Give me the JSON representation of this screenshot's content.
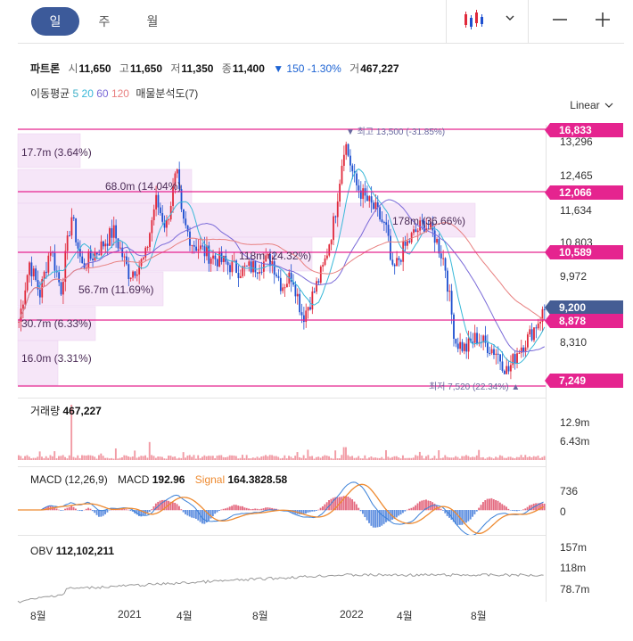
{
  "periods": {
    "day": "일",
    "week": "주",
    "month": "월"
  },
  "toolbar": {
    "chart_type_icon": "candle-chart-icon",
    "dropdown_icon": "chevron-down-icon",
    "zoom_out_icon": "minus-icon",
    "zoom_in_icon": "plus-icon"
  },
  "info": {
    "name": "파트론",
    "open_k": "시",
    "open": "11,650",
    "high_k": "고",
    "high": "11,650",
    "low_k": "저",
    "low": "11,350",
    "close_k": "종",
    "close": "11,400",
    "change": "▼ 150",
    "change_pct": "-1.30%",
    "volume_k": "거",
    "volume": "467,227"
  },
  "ma": {
    "label": "이동평균",
    "p5": "5",
    "p20": "20",
    "p60": "60",
    "p120": "120",
    "c5": "#3fb0c8",
    "c20": "#38b8d8",
    "c60": "#7a6ad8",
    "c120": "#e88080",
    "profile": "매물분석도(7)"
  },
  "scale": "Linear",
  "colors": {
    "up": "#e0283a",
    "down": "#1d4fd0",
    "level": "#e5248f",
    "last": "#455d94",
    "volume": "#f19aa4",
    "macd": "#3a80d8",
    "signal": "#ee8a30",
    "obv": "#999999"
  },
  "levels": {
    "l1": "16,833",
    "l2": "12,066",
    "l3": "10,589",
    "l4": "8,878",
    "l5": "7,249",
    "last": "9,200"
  },
  "axis_price": [
    "13,296",
    "12,465",
    "11,634",
    "10,803",
    "9,972",
    "8,310"
  ],
  "volume_profile": [
    "17.7m (3.64%)",
    "68.0m (14.04%)",
    "178m (36.66%)",
    "118m (24.32%)",
    "56.7m (11.69%)",
    "30.7m (6.33%)",
    "16.0m (3.31%)"
  ],
  "high_label": "▼ 최고 13,500 (-31.85%)",
  "low_label": "최저 7,520 (22.34%) ▲",
  "volume_panel": {
    "label": "거래량",
    "value": "467,227",
    "ticks": [
      "12.9m",
      "6.43m"
    ]
  },
  "macd_panel": {
    "label": "MACD (12,26,9)",
    "macd_k": "MACD",
    "macd": "192.96",
    "signal_k": "Signal",
    "signal": "164.3828.58",
    "ticks": [
      "736",
      "0"
    ]
  },
  "obv_panel": {
    "label": "OBV",
    "value": "112,102,211",
    "ticks": [
      "157m",
      "118m",
      "78.7m"
    ]
  },
  "x_months": [
    "8월",
    "2021",
    "4월",
    "8월",
    "2022",
    "4월",
    "8월"
  ],
  "chart_data": {
    "type": "candlestick",
    "y_range": [
      7100,
      13900
    ],
    "price_path": [
      [
        0,
        8900
      ],
      [
        0.02,
        10400
      ],
      [
        0.04,
        9600
      ],
      [
        0.06,
        10800
      ],
      [
        0.08,
        9700
      ],
      [
        0.1,
        11600
      ],
      [
        0.12,
        10300
      ],
      [
        0.15,
        10700
      ],
      [
        0.18,
        11200
      ],
      [
        0.21,
        10100
      ],
      [
        0.24,
        10500
      ],
      [
        0.26,
        12000
      ],
      [
        0.28,
        11300
      ],
      [
        0.3,
        12700
      ],
      [
        0.31,
        11500
      ],
      [
        0.33,
        10900
      ],
      [
        0.36,
        10600
      ],
      [
        0.39,
        10400
      ],
      [
        0.42,
        10200
      ],
      [
        0.45,
        10300
      ],
      [
        0.48,
        10500
      ],
      [
        0.5,
        9800
      ],
      [
        0.52,
        10100
      ],
      [
        0.54,
        9000
      ],
      [
        0.56,
        9600
      ],
      [
        0.58,
        10300
      ],
      [
        0.6,
        11500
      ],
      [
        0.62,
        13500
      ],
      [
        0.64,
        12400
      ],
      [
        0.66,
        12000
      ],
      [
        0.68,
        11700
      ],
      [
        0.7,
        11200
      ],
      [
        0.71,
        10100
      ],
      [
        0.73,
        10700
      ],
      [
        0.75,
        11100
      ],
      [
        0.77,
        11400
      ],
      [
        0.79,
        11100
      ],
      [
        0.81,
        10400
      ],
      [
        0.83,
        8400
      ],
      [
        0.85,
        8200
      ],
      [
        0.87,
        8500
      ],
      [
        0.89,
        8300
      ],
      [
        0.91,
        8100
      ],
      [
        0.93,
        7600
      ],
      [
        0.95,
        8200
      ],
      [
        0.97,
        8500
      ],
      [
        1.0,
        9200
      ]
    ],
    "volume_spikes": [
      [
        0.1,
        12.9
      ],
      [
        0.25,
        4.2
      ],
      [
        0.55,
        2.4
      ],
      [
        0.62,
        3.0
      ]
    ],
    "levels_values": [
      16833,
      12066,
      10589,
      8878,
      7249
    ],
    "last_close": 9200
  }
}
